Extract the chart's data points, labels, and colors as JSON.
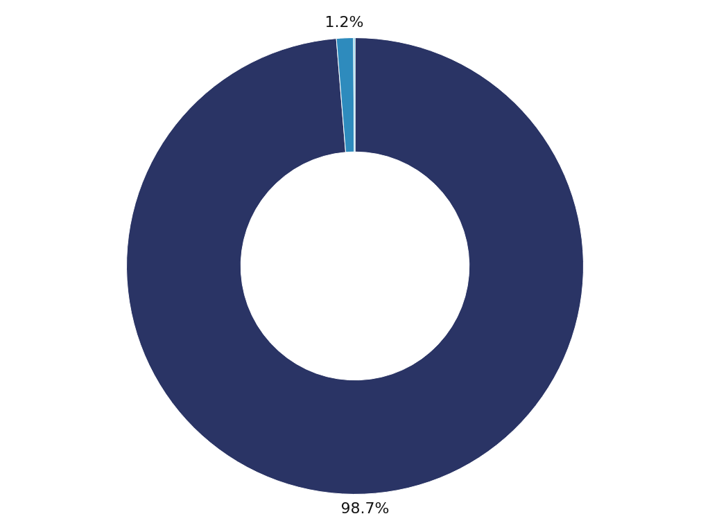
{
  "chart_data": {
    "type": "donut",
    "categories": [
      null,
      null,
      null
    ],
    "values": [
      98.7,
      1.2,
      0.1
    ],
    "colors": [
      "#2a3465",
      "#2e8bbd",
      "#5bc8e8"
    ],
    "value_labels": [
      "98.7%",
      "1.2%",
      null
    ],
    "legend": false
  }
}
